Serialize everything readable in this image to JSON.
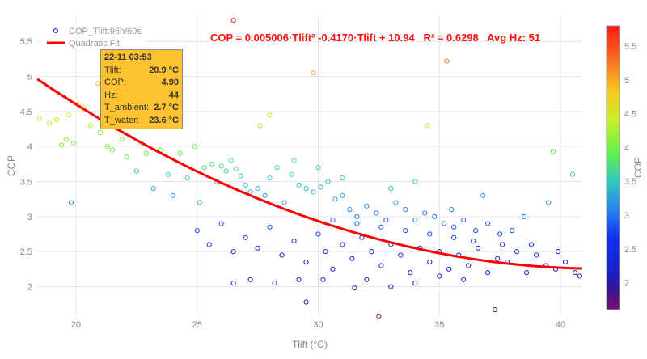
{
  "chart_data": {
    "type": "scatter",
    "xlabel": "Tlift (°C)",
    "ylabel": "COP",
    "xlim": [
      18.4,
      40.9
    ],
    "ylim": [
      1.59,
      5.86
    ],
    "x_ticks": [
      20,
      25,
      30,
      35,
      40
    ],
    "y_ticks": [
      2,
      2.5,
      3,
      3.5,
      4,
      4.5,
      5,
      5.5
    ],
    "grid": true,
    "legend_position": "top-left",
    "annotation": "COP = 0.005006·Tlift² -0.4170·Tlift + 10.94   R² = 0.6298   Avg Hz: 51",
    "colorbar": {
      "title": "COP",
      "range": [
        1.6,
        5.8
      ],
      "ticks": [
        2,
        2.5,
        3,
        3.5,
        4,
        4.5,
        5,
        5.5
      ],
      "colorscale": "rainbow"
    },
    "series": [
      {
        "name": "COP_Tlift:96h/60s",
        "mode": "markers",
        "marker_color": "#4040ff",
        "points": [
          [
            18.5,
            4.4
          ],
          [
            18.9,
            4.33
          ],
          [
            19.2,
            4.38
          ],
          [
            19.4,
            4.02
          ],
          [
            19.6,
            4.1
          ],
          [
            19.7,
            4.45
          ],
          [
            19.9,
            4.05
          ],
          [
            20.1,
            4.6
          ],
          [
            20.3,
            4.55
          ],
          [
            19.8,
            3.2
          ],
          [
            20.6,
            4.3
          ],
          [
            20.9,
            4.9
          ],
          [
            21.0,
            4.2
          ],
          [
            21.3,
            4.0
          ],
          [
            21.5,
            3.95
          ],
          [
            21.7,
            4.25
          ],
          [
            21.9,
            4.1
          ],
          [
            22.1,
            3.85
          ],
          [
            22.3,
            4.3
          ],
          [
            22.5,
            3.65
          ],
          [
            22.7,
            4.05
          ],
          [
            22.9,
            3.9
          ],
          [
            23.2,
            3.4
          ],
          [
            23.5,
            3.95
          ],
          [
            23.8,
            3.6
          ],
          [
            24.0,
            3.3
          ],
          [
            24.3,
            3.9
          ],
          [
            24.6,
            3.55
          ],
          [
            24.9,
            4.0
          ],
          [
            25.1,
            3.2
          ],
          [
            25.3,
            3.7
          ],
          [
            25.6,
            3.75
          ],
          [
            25.8,
            3.5
          ],
          [
            26.0,
            3.72
          ],
          [
            26.2,
            3.65
          ],
          [
            26.4,
            3.8
          ],
          [
            26.6,
            3.68
          ],
          [
            26.8,
            3.58
          ],
          [
            27.0,
            3.45
          ],
          [
            27.2,
            3.35
          ],
          [
            27.5,
            3.4
          ],
          [
            27.8,
            3.3
          ],
          [
            28.0,
            3.55
          ],
          [
            28.3,
            3.7
          ],
          [
            28.6,
            3.2
          ],
          [
            28.9,
            3.6
          ],
          [
            29.2,
            3.45
          ],
          [
            29.5,
            3.4
          ],
          [
            29.8,
            3.35
          ],
          [
            30.1,
            3.42
          ],
          [
            30.4,
            3.5
          ],
          [
            30.7,
            3.25
          ],
          [
            31.0,
            3.3
          ],
          [
            31.3,
            3.1
          ],
          [
            31.6,
            3.0
          ],
          [
            32.0,
            3.15
          ],
          [
            32.4,
            3.05
          ],
          [
            32.8,
            2.95
          ],
          [
            33.2,
            3.2
          ],
          [
            33.6,
            3.1
          ],
          [
            34.0,
            2.95
          ],
          [
            34.4,
            3.05
          ],
          [
            34.8,
            3.0
          ],
          [
            35.2,
            2.9
          ],
          [
            35.6,
            2.85
          ],
          [
            36.0,
            2.95
          ],
          [
            36.5,
            2.8
          ],
          [
            37.0,
            2.9
          ],
          [
            37.5,
            2.75
          ],
          [
            38.0,
            2.8
          ],
          [
            25.0,
            2.8
          ],
          [
            25.5,
            2.6
          ],
          [
            26.0,
            2.9
          ],
          [
            26.5,
            2.5
          ],
          [
            27.0,
            2.7
          ],
          [
            27.5,
            2.55
          ],
          [
            28.0,
            2.85
          ],
          [
            28.5,
            2.45
          ],
          [
            29.0,
            2.65
          ],
          [
            29.5,
            2.35
          ],
          [
            30.0,
            2.75
          ],
          [
            30.3,
            2.5
          ],
          [
            30.6,
            2.25
          ],
          [
            31.0,
            2.6
          ],
          [
            31.4,
            2.4
          ],
          [
            31.8,
            2.7
          ],
          [
            32.2,
            2.5
          ],
          [
            32.6,
            2.3
          ],
          [
            33.0,
            2.6
          ],
          [
            33.4,
            2.45
          ],
          [
            33.8,
            2.2
          ],
          [
            34.2,
            2.55
          ],
          [
            34.6,
            2.35
          ],
          [
            35.0,
            2.5
          ],
          [
            35.4,
            2.25
          ],
          [
            35.8,
            2.45
          ],
          [
            36.2,
            2.3
          ],
          [
            36.6,
            2.55
          ],
          [
            37.0,
            2.2
          ],
          [
            37.4,
            2.4
          ],
          [
            37.8,
            2.35
          ],
          [
            38.2,
            2.5
          ],
          [
            38.6,
            2.2
          ],
          [
            39.0,
            2.45
          ],
          [
            39.4,
            2.3
          ],
          [
            39.8,
            2.25
          ],
          [
            40.2,
            2.35
          ],
          [
            40.6,
            2.2
          ],
          [
            40.8,
            2.15
          ],
          [
            32.0,
            2.1
          ],
          [
            33.0,
            2.0
          ],
          [
            34.0,
            2.05
          ],
          [
            35.0,
            2.15
          ],
          [
            36.0,
            2.1
          ],
          [
            27.2,
            2.1
          ],
          [
            28.2,
            2.05
          ],
          [
            29.2,
            2.1
          ],
          [
            30.2,
            2.1
          ],
          [
            31.5,
            1.98
          ],
          [
            26.5,
            2.05
          ],
          [
            26.5,
            5.8
          ],
          [
            29.8,
            5.05
          ],
          [
            35.3,
            5.22
          ],
          [
            34.5,
            4.3
          ],
          [
            39.7,
            3.93
          ],
          [
            40.5,
            3.6
          ],
          [
            28.0,
            4.45
          ],
          [
            27.6,
            4.3
          ],
          [
            37.3,
            1.67
          ],
          [
            32.5,
            1.58
          ],
          [
            29.5,
            1.78
          ],
          [
            38.5,
            3.0
          ],
          [
            39.5,
            3.2
          ],
          [
            36.8,
            3.3
          ],
          [
            35.5,
            3.1
          ],
          [
            34.0,
            3.5
          ],
          [
            33.0,
            3.4
          ],
          [
            31.0,
            3.55
          ],
          [
            30.0,
            3.7
          ],
          [
            29.0,
            3.8
          ],
          [
            36.4,
            2.65
          ],
          [
            35.6,
            2.7
          ],
          [
            34.6,
            2.75
          ],
          [
            33.6,
            2.8
          ],
          [
            32.6,
            2.85
          ],
          [
            31.6,
            2.9
          ],
          [
            30.6,
            2.95
          ],
          [
            38.8,
            2.6
          ],
          [
            39.9,
            2.5
          ],
          [
            37.6,
            2.6
          ]
        ]
      },
      {
        "name": "Quadratic Fit",
        "mode": "lines",
        "color": "#ff0000",
        "coefficients": [
          0.005006,
          -0.417,
          10.94
        ]
      }
    ]
  },
  "tooltip": {
    "title": "22-11 03:53",
    "rows": [
      {
        "label": "Tlift:",
        "value": "20.9 °C"
      },
      {
        "label": "COP:",
        "value": "4.90"
      },
      {
        "label": "Hz:",
        "value": "44"
      },
      {
        "label": "T_ambient:",
        "value": "2.7 °C"
      },
      {
        "label": "T_water:",
        "value": "23.6 °C"
      }
    ]
  }
}
